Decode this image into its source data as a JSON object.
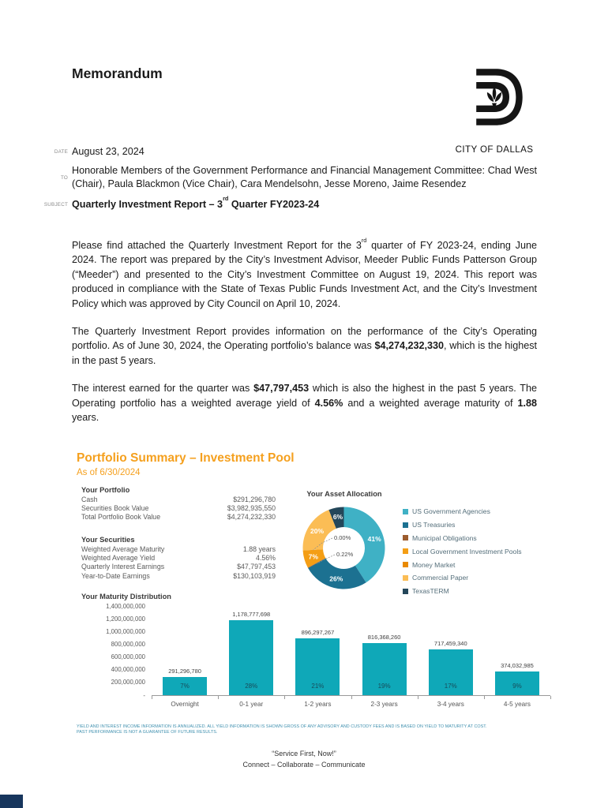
{
  "colors": {
    "accent_orange": "#F5A01E",
    "bar_teal": "#0FA8B8",
    "corner_navy": "#17365D"
  },
  "memo": {
    "title": "Memorandum",
    "logo_caption": "CITY OF DALLAS",
    "fields": [
      {
        "label": "DATE",
        "kind": "date",
        "segments": [
          {
            "t": "August 23, 2024"
          }
        ]
      },
      {
        "label": "TO",
        "kind": "to",
        "segments": [
          {
            "t": "Honorable Members of the Government Performance and Financial Management Committee: Chad West (Chair), Paula Blackmon (Vice Chair), Cara Mendelsohn, Jesse Moreno, Jaime Resendez"
          }
        ]
      },
      {
        "label": "SUBJECT",
        "kind": "subject",
        "segments": [
          {
            "t": "Quarterly Investment Report – 3",
            "b": true
          },
          {
            "t": "rd",
            "b": true,
            "sup": true
          },
          {
            "t": " Quarter FY2023-24",
            "b": true
          }
        ]
      }
    ],
    "paragraphs": [
      {
        "segments": [
          {
            "t": "Please find attached the Quarterly Investment Report for the 3"
          },
          {
            "t": "rd",
            "sup": true
          },
          {
            "t": " quarter of FY 2023-24, ending June 2024. The report was prepared by the City’s Investment Advisor, Meeder Public Funds Patterson Group (“Meeder”) and presented to the City’s Investment Committee on August 19, 2024. This report was produced in compliance with the State of Texas Public Funds Investment Act, and the City’s Investment Policy which was approved by City Council on April 10, 2024."
          }
        ]
      },
      {
        "segments": [
          {
            "t": "The Quarterly Investment Report provides information on the performance of the City’s Operating portfolio. As of June 30, 2024, the Operating portfolio’s balance was "
          },
          {
            "t": "$4,274,232,330",
            "b": true
          },
          {
            "t": ", which is the highest in the past 5 years."
          }
        ]
      },
      {
        "segments": [
          {
            "t": "The interest earned for the quarter was "
          },
          {
            "t": "$47,797,453",
            "b": true
          },
          {
            "t": " which is also the highest in the past 5 years.  The Operating portfolio has a weighted average yield of "
          },
          {
            "t": "4.56%",
            "b": true
          },
          {
            "t": " and a weighted average maturity of "
          },
          {
            "t": "1.88",
            "b": true
          },
          {
            "t": " years."
          }
        ]
      }
    ]
  },
  "report": {
    "title": "Portfolio Summary – Investment Pool",
    "as_of": "As of 6/30/2024",
    "portfolio": {
      "heading": "Your Portfolio",
      "rows": [
        [
          "Cash",
          "$291,296,780"
        ],
        [
          "Securities Book Value",
          "$3,982,935,550"
        ],
        [
          "Total Portfolio Book Value",
          "$4,274,232,330"
        ]
      ]
    },
    "securities": {
      "heading": "Your Securities",
      "rows": [
        [
          "Weighted Average Maturity",
          "1.88 years"
        ],
        [
          "Weighted Average Yield",
          "4.56%"
        ],
        [
          "Quarterly Interest Earnings",
          "$47,797,453"
        ],
        [
          "Year-to-Date Earnings",
          "$130,103,919"
        ]
      ]
    },
    "disclaimer_line1": "YIELD AND INTEREST INCOME INFORMATION IS ANNUALIZED. ALL YIELD INFORMATION IS SHOWN GROSS OF ANY ADVISORY AND CUSTODY FEES AND IS BASED ON YIELD TO MATURITY AT COST.",
    "disclaimer_line2": "PAST PERFORMANCE IS NOT A GUARANTEE OF FUTURE RESULTS."
  },
  "chart_data": [
    {
      "type": "pie",
      "donut": true,
      "title": "Your Asset Allocation",
      "labels": [
        "US Government Agencies",
        "US Treasuries",
        "Municipal Obligations",
        "Local Government Investment Pools",
        "Money Market",
        "Commercial Paper",
        "TexasTERM"
      ],
      "values": [
        41,
        26,
        0.22,
        7,
        0,
        20,
        6
      ],
      "display_labels": [
        "41%",
        "26%",
        "0.22%",
        "7%",
        "0.00%",
        "20%",
        "6%"
      ],
      "colors": [
        "#3FB1C5",
        "#1C7191",
        "#9C5C2E",
        "#F49E15",
        "#E98A00",
        "#FBBD55",
        "#24475A"
      ],
      "legend_position": "right"
    },
    {
      "type": "bar",
      "title": "Your Maturity Distribution",
      "categories": [
        "Overnight",
        "0-1 year",
        "1-2 years",
        "2-3 years",
        "3-4 years",
        "4-5 years"
      ],
      "values": [
        291296780,
        1178777698,
        896297267,
        816368260,
        717459340,
        374032985
      ],
      "value_labels": [
        "291,296,780",
        "1,178,777,698",
        "896,297,267",
        "816,368,260",
        "717,459,340",
        "374,032,985"
      ],
      "pct_labels": [
        "7%",
        "28%",
        "21%",
        "19%",
        "17%",
        "9%"
      ],
      "ylim": [
        0,
        1400000000
      ],
      "ytick_step": 200000000,
      "yticks": [
        "1,400,000,000",
        "1,200,000,000",
        "1,000,000,000",
        "800,000,000",
        "600,000,000",
        "400,000,000",
        "200,000,000",
        "-"
      ],
      "grid": false,
      "bar_color": "#0FA8B8"
    }
  ],
  "footer": {
    "line1": "“Service First, Now!”",
    "line2": "Connect – Collaborate – Communicate"
  }
}
